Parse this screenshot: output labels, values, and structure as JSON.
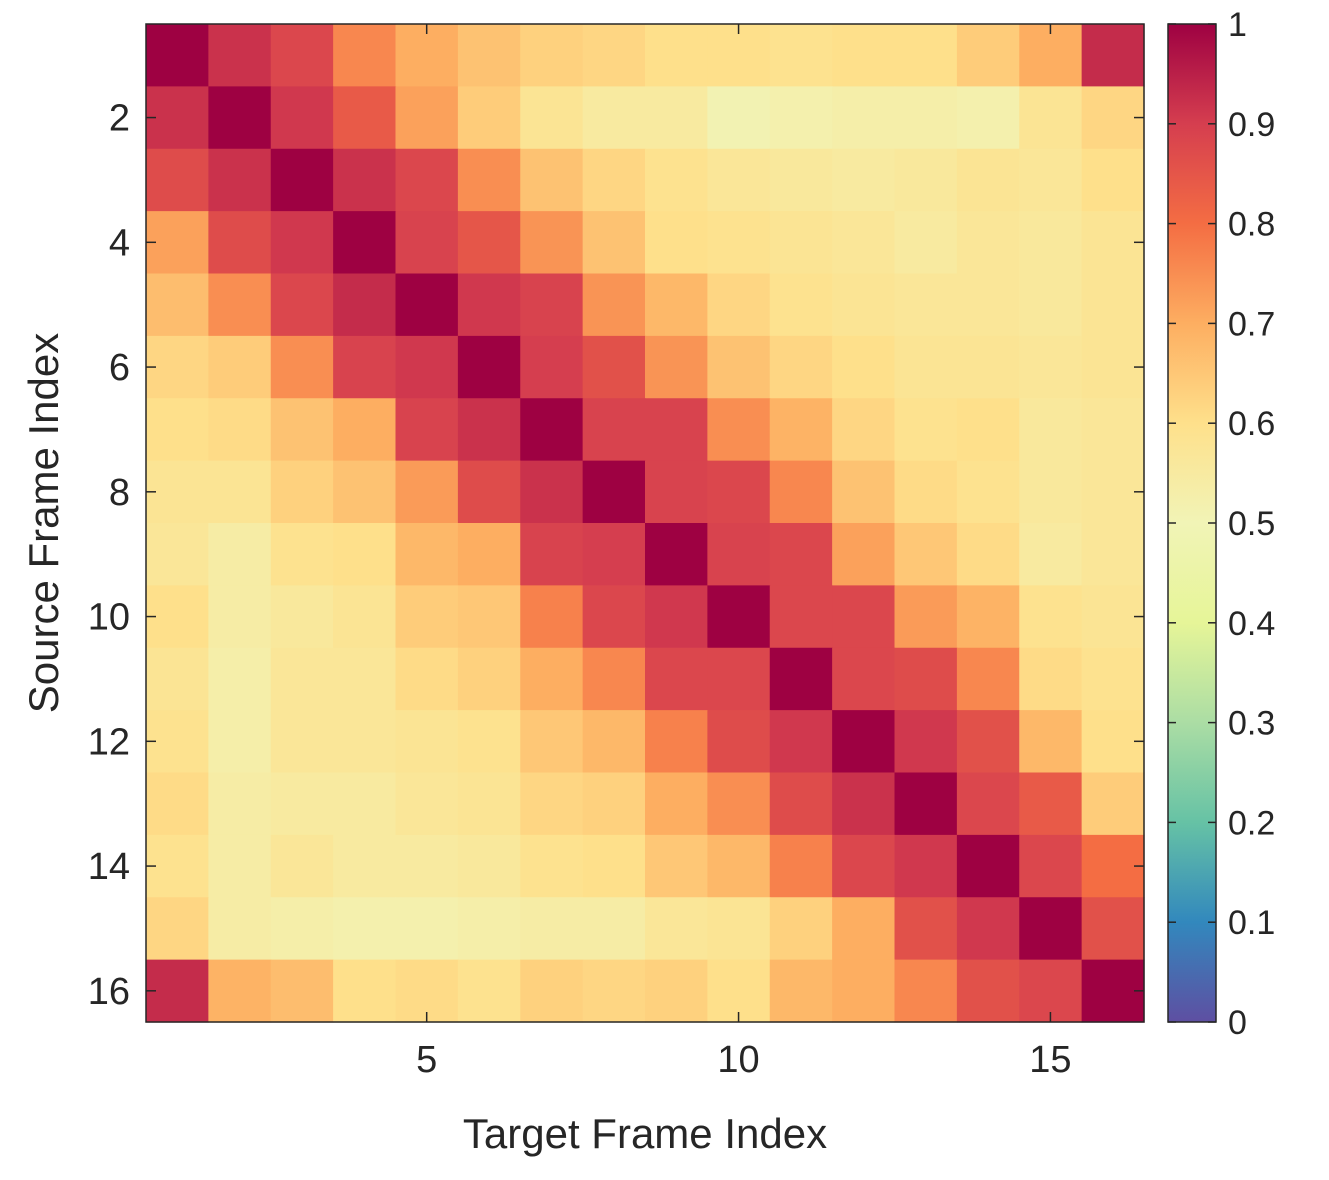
{
  "chart_data": {
    "type": "heatmap",
    "title": "",
    "xlabel": "Target Frame Index",
    "ylabel": "Source Frame Index",
    "x": [
      1,
      2,
      3,
      4,
      5,
      6,
      7,
      8,
      9,
      10,
      11,
      12,
      13,
      14,
      15,
      16
    ],
    "y": [
      1,
      2,
      3,
      4,
      5,
      6,
      7,
      8,
      9,
      10,
      11,
      12,
      13,
      14,
      15,
      16
    ],
    "x_ticks": [
      5,
      10,
      15
    ],
    "x_tick_labels": [
      "5",
      "10",
      "15"
    ],
    "y_ticks": [
      2,
      4,
      6,
      8,
      10,
      12,
      14,
      16
    ],
    "y_tick_labels": [
      "2",
      "4",
      "6",
      "8",
      "10",
      "12",
      "14",
      "16"
    ],
    "y_direction": "top-down",
    "colorbar": {
      "min": 0,
      "max": 1,
      "ticks": [
        0,
        0.1,
        0.2,
        0.3,
        0.4,
        0.5,
        0.6,
        0.7,
        0.8,
        0.9,
        1
      ],
      "tick_labels": [
        "0",
        "0.1",
        "0.2",
        "0.3",
        "0.4",
        "0.5",
        "0.6",
        "0.7",
        "0.8",
        "0.9",
        "1"
      ],
      "colormap": "Spectral",
      "placement": "right"
    },
    "values": [
      [
        1.0,
        0.92,
        0.88,
        0.76,
        0.7,
        0.66,
        0.63,
        0.62,
        0.6,
        0.6,
        0.59,
        0.6,
        0.6,
        0.64,
        0.7,
        0.93
      ],
      [
        0.92,
        1.0,
        0.91,
        0.84,
        0.72,
        0.64,
        0.58,
        0.55,
        0.55,
        0.51,
        0.52,
        0.53,
        0.53,
        0.52,
        0.58,
        0.62
      ],
      [
        0.87,
        0.92,
        1.0,
        0.92,
        0.88,
        0.75,
        0.66,
        0.62,
        0.59,
        0.57,
        0.56,
        0.55,
        0.56,
        0.58,
        0.57,
        0.6
      ],
      [
        0.72,
        0.87,
        0.91,
        1.0,
        0.89,
        0.85,
        0.74,
        0.66,
        0.6,
        0.59,
        0.58,
        0.57,
        0.55,
        0.57,
        0.56,
        0.58
      ],
      [
        0.67,
        0.75,
        0.88,
        0.93,
        1.0,
        0.91,
        0.89,
        0.74,
        0.68,
        0.62,
        0.59,
        0.58,
        0.57,
        0.57,
        0.56,
        0.58
      ],
      [
        0.62,
        0.64,
        0.75,
        0.89,
        0.91,
        1.0,
        0.9,
        0.86,
        0.74,
        0.66,
        0.62,
        0.6,
        0.58,
        0.58,
        0.57,
        0.58
      ],
      [
        0.6,
        0.61,
        0.66,
        0.7,
        0.89,
        0.92,
        1.0,
        0.89,
        0.89,
        0.75,
        0.69,
        0.62,
        0.59,
        0.6,
        0.56,
        0.57
      ],
      [
        0.58,
        0.58,
        0.63,
        0.66,
        0.73,
        0.87,
        0.92,
        1.0,
        0.89,
        0.88,
        0.76,
        0.66,
        0.61,
        0.59,
        0.56,
        0.57
      ],
      [
        0.57,
        0.54,
        0.59,
        0.6,
        0.68,
        0.7,
        0.89,
        0.9,
        1.0,
        0.89,
        0.88,
        0.72,
        0.65,
        0.61,
        0.55,
        0.57
      ],
      [
        0.6,
        0.54,
        0.56,
        0.58,
        0.64,
        0.65,
        0.77,
        0.88,
        0.91,
        1.0,
        0.88,
        0.88,
        0.73,
        0.69,
        0.59,
        0.58
      ],
      [
        0.58,
        0.53,
        0.57,
        0.57,
        0.61,
        0.63,
        0.7,
        0.76,
        0.88,
        0.88,
        1.0,
        0.88,
        0.87,
        0.76,
        0.61,
        0.59
      ],
      [
        0.59,
        0.53,
        0.57,
        0.57,
        0.58,
        0.59,
        0.65,
        0.68,
        0.77,
        0.87,
        0.91,
        1.0,
        0.91,
        0.86,
        0.68,
        0.6
      ],
      [
        0.61,
        0.54,
        0.55,
        0.55,
        0.57,
        0.58,
        0.62,
        0.63,
        0.7,
        0.75,
        0.87,
        0.92,
        1.0,
        0.88,
        0.84,
        0.64
      ],
      [
        0.59,
        0.54,
        0.57,
        0.55,
        0.55,
        0.56,
        0.59,
        0.6,
        0.65,
        0.68,
        0.77,
        0.88,
        0.91,
        1.0,
        0.88,
        0.8
      ],
      [
        0.62,
        0.54,
        0.53,
        0.52,
        0.52,
        0.53,
        0.54,
        0.54,
        0.57,
        0.58,
        0.63,
        0.7,
        0.86,
        0.91,
        1.0,
        0.86
      ],
      [
        0.93,
        0.69,
        0.67,
        0.6,
        0.61,
        0.59,
        0.63,
        0.62,
        0.63,
        0.6,
        0.68,
        0.7,
        0.76,
        0.86,
        0.88,
        1.0
      ]
    ]
  }
}
